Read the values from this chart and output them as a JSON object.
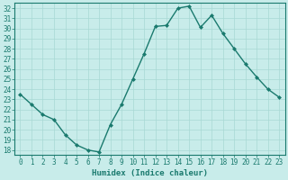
{
  "x": [
    0,
    1,
    2,
    3,
    4,
    5,
    6,
    7,
    8,
    9,
    10,
    11,
    12,
    13,
    14,
    15,
    16,
    17,
    18,
    19,
    20,
    21,
    22,
    23
  ],
  "y": [
    23.5,
    22.5,
    21.5,
    21.0,
    19.5,
    18.5,
    18.0,
    17.8,
    20.5,
    22.5,
    25.0,
    27.5,
    30.2,
    30.3,
    32.0,
    32.2,
    30.1,
    31.3,
    29.5,
    28.0,
    26.5,
    25.2,
    24.0,
    23.2
  ],
  "line_color": "#1a7a6e",
  "marker": "D",
  "marker_size": 2.0,
  "bg_color": "#c8ecea",
  "grid_color": "#a8d8d4",
  "xlabel": "Humidex (Indice chaleur)",
  "ylabel": "",
  "xlim": [
    -0.5,
    23.5
  ],
  "ylim": [
    17.5,
    32.5
  ],
  "yticks": [
    18,
    19,
    20,
    21,
    22,
    23,
    24,
    25,
    26,
    27,
    28,
    29,
    30,
    31,
    32
  ],
  "xticks": [
    0,
    1,
    2,
    3,
    4,
    5,
    6,
    7,
    8,
    9,
    10,
    11,
    12,
    13,
    14,
    15,
    16,
    17,
    18,
    19,
    20,
    21,
    22,
    23
  ],
  "tick_color": "#1a7a6e",
  "tick_label_color": "#1a7a6e",
  "xlabel_color": "#1a7a6e",
  "xlabel_fontsize": 6.5,
  "tick_fontsize": 5.5,
  "border_color": "#1a7a6e",
  "linewidth": 1.0
}
